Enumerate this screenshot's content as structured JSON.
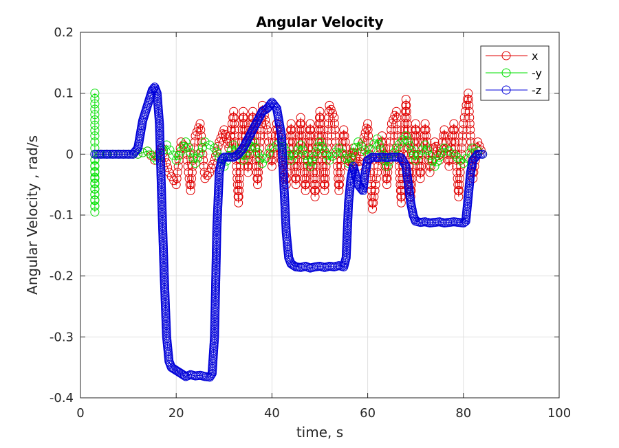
{
  "chart_data": {
    "type": "line",
    "title": "Angular Velocity",
    "xlabel": "time, s",
    "ylabel": "Angular Velocity , rad/s",
    "xlim": [
      0,
      100
    ],
    "ylim": [
      -0.4,
      0.2
    ],
    "xticks": [
      "0",
      "20",
      "40",
      "60",
      "80",
      "100"
    ],
    "yticks": [
      "0.2",
      "0.1",
      "0",
      "-0.1",
      "-0.2",
      "-0.3",
      "-0.4"
    ],
    "grid": true,
    "legend_position": "top-right",
    "marker": "circle",
    "series": [
      {
        "name": "x",
        "color": "#e00000",
        "x": [
          3,
          8,
          12,
          14,
          15.5,
          17,
          18.5,
          20,
          21,
          22,
          23,
          24,
          25,
          26,
          27,
          28,
          29,
          30,
          31,
          32,
          33,
          34,
          35,
          36,
          37,
          38,
          39,
          40,
          41,
          42,
          43,
          44,
          45,
          46,
          47,
          48,
          49,
          50,
          51,
          52,
          53,
          54,
          55,
          56,
          57,
          58,
          59,
          60,
          61,
          62,
          63,
          64,
          65,
          66,
          67,
          68,
          69,
          70,
          71,
          72,
          73,
          74,
          75,
          76,
          77,
          78,
          79,
          80,
          81,
          82,
          83,
          84
        ],
        "y": [
          0,
          0,
          0,
          0.005,
          -0.01,
          0.01,
          -0.03,
          -0.05,
          0.02,
          0.01,
          -0.06,
          0.03,
          0.05,
          -0.04,
          -0.03,
          -0.01,
          0.02,
          0.04,
          0.01,
          0.07,
          -0.08,
          0.07,
          -0.03,
          0.07,
          -0.05,
          0.08,
          0.04,
          -0.02,
          0.05,
          -0.01,
          -0.05,
          0.05,
          -0.05,
          0.06,
          -0.06,
          0.05,
          -0.07,
          0.07,
          -0.06,
          0.08,
          0.06,
          -0.06,
          0.04,
          -0.02,
          0.01,
          -0.02,
          0.02,
          0.05,
          -0.09,
          -0.03,
          0.03,
          -0.05,
          0.05,
          0.07,
          -0.08,
          0.09,
          -0.07,
          0.05,
          -0.04,
          0.05,
          -0.03,
          0.02,
          -0.01,
          0.04,
          -0.02,
          0.05,
          -0.07,
          0.05,
          0.1,
          -0.04,
          0.02,
          0.0
        ]
      },
      {
        "name": "-y",
        "color": "#00e000",
        "x": [
          3,
          3,
          3,
          3,
          3,
          3,
          3,
          8,
          12,
          14,
          16,
          18,
          20,
          22,
          24,
          26,
          28,
          30,
          32,
          34,
          36,
          38,
          40,
          42,
          44,
          46,
          48,
          50,
          52,
          54,
          56,
          58,
          60,
          62,
          64,
          66,
          68,
          70,
          72,
          74,
          76,
          78,
          80,
          82,
          84
        ],
        "y": [
          0.1,
          0.065,
          0.03,
          -0.04,
          -0.075,
          -0.095,
          0,
          0,
          0,
          0.005,
          -0.01,
          0.015,
          -0.01,
          0.02,
          -0.015,
          0.02,
          0.01,
          -0.02,
          0.015,
          -0.01,
          0.02,
          -0.015,
          0.01,
          0.02,
          -0.01,
          0.015,
          -0.02,
          0.02,
          -0.01,
          0.01,
          -0.015,
          0.02,
          0.0,
          0.025,
          -0.02,
          0.01,
          0.03,
          -0.01,
          0.015,
          -0.02,
          0.01,
          0.0,
          -0.015,
          0.01,
          0.0
        ]
      },
      {
        "name": "-z",
        "color": "#0000d8",
        "x": [
          3,
          5,
          7,
          9,
          11,
          12,
          13,
          14,
          15,
          15.5,
          16,
          16.5,
          17,
          17.5,
          18,
          18.5,
          19,
          20,
          21,
          22,
          23,
          24,
          25,
          26,
          27,
          27.5,
          28,
          28.5,
          29,
          29.5,
          30,
          31,
          32,
          33,
          34,
          35,
          36,
          37,
          38,
          39,
          40,
          41,
          42,
          42.5,
          43,
          43.5,
          44,
          45,
          46,
          47,
          48,
          49,
          50,
          51,
          52,
          53,
          54,
          55,
          55.5,
          56,
          56.5,
          57,
          58,
          59,
          59.5,
          60,
          61,
          62,
          63,
          64,
          65,
          66,
          67,
          68,
          68.5,
          69,
          69.5,
          70,
          71,
          72,
          73,
          74,
          75,
          76,
          77,
          78,
          79,
          80,
          80.5,
          81,
          81.5,
          82,
          83,
          84
        ],
        "y": [
          0,
          0,
          0,
          0,
          0,
          0.01,
          0.055,
          0.08,
          0.105,
          0.11,
          0.1,
          0.05,
          -0.08,
          -0.2,
          -0.3,
          -0.34,
          -0.35,
          -0.355,
          -0.36,
          -0.365,
          -0.362,
          -0.364,
          -0.363,
          -0.365,
          -0.366,
          -0.36,
          -0.3,
          -0.12,
          -0.03,
          -0.01,
          -0.005,
          -0.005,
          -0.005,
          0.0,
          0.01,
          0.025,
          0.04,
          0.055,
          0.07,
          0.075,
          0.085,
          0.075,
          0.03,
          -0.05,
          -0.13,
          -0.17,
          -0.18,
          -0.185,
          -0.186,
          -0.184,
          -0.187,
          -0.185,
          -0.184,
          -0.186,
          -0.184,
          -0.185,
          -0.183,
          -0.185,
          -0.17,
          -0.08,
          -0.04,
          -0.02,
          -0.05,
          -0.06,
          -0.03,
          -0.01,
          -0.005,
          -0.006,
          -0.005,
          -0.006,
          -0.005,
          -0.005,
          -0.006,
          -0.02,
          -0.05,
          -0.08,
          -0.1,
          -0.11,
          -0.112,
          -0.111,
          -0.113,
          -0.112,
          -0.111,
          -0.113,
          -0.112,
          -0.111,
          -0.112,
          -0.113,
          -0.11,
          -0.07,
          -0.03,
          -0.01,
          0.0,
          0.0
        ]
      }
    ]
  }
}
